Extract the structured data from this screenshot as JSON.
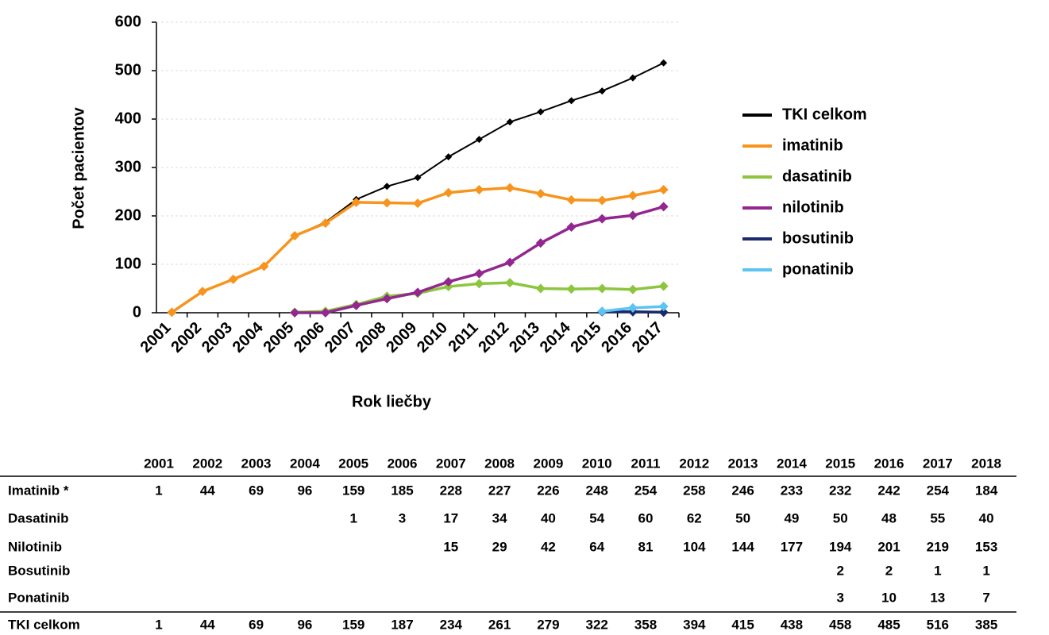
{
  "chart_data": {
    "type": "line",
    "xlabel": "Rok liečby",
    "ylabel": "Počet pacientov",
    "categories": [
      "2001",
      "2002",
      "2003",
      "2004",
      "2005",
      "2006",
      "2007",
      "2008",
      "2009",
      "2010",
      "2011",
      "2012",
      "2013",
      "2014",
      "2015",
      "2016",
      "2017"
    ],
    "ylim": [
      0,
      600
    ],
    "yticks": [
      0,
      100,
      200,
      300,
      400,
      500,
      600
    ],
    "grid": true,
    "legend": "right",
    "series": [
      {
        "name": "TKI celkom",
        "color": "#000000",
        "values": [
          1,
          44,
          69,
          96,
          159,
          187,
          234,
          261,
          279,
          322,
          358,
          394,
          415,
          438,
          458,
          485,
          516
        ]
      },
      {
        "name": "imatinib",
        "color": "#f7941d",
        "values": [
          1,
          44,
          69,
          96,
          159,
          185,
          228,
          227,
          226,
          248,
          254,
          258,
          246,
          233,
          232,
          242,
          254
        ]
      },
      {
        "name": "dasatinib",
        "color": "#8cc63f",
        "values": [
          null,
          null,
          null,
          null,
          1,
          3,
          17,
          34,
          40,
          54,
          60,
          62,
          50,
          49,
          50,
          48,
          55
        ]
      },
      {
        "name": "nilotinib",
        "color": "#92278f",
        "values": [
          null,
          null,
          null,
          null,
          0,
          0,
          15,
          29,
          42,
          64,
          81,
          104,
          144,
          177,
          194,
          201,
          219
        ]
      },
      {
        "name": "bosutinib",
        "color": "#1b2a6b",
        "values": [
          null,
          null,
          null,
          null,
          null,
          null,
          null,
          null,
          null,
          null,
          null,
          null,
          null,
          null,
          2,
          2,
          1
        ]
      },
      {
        "name": "ponatinib",
        "color": "#5bc4f1",
        "values": [
          null,
          null,
          null,
          null,
          null,
          null,
          null,
          null,
          null,
          null,
          null,
          null,
          null,
          null,
          3,
          10,
          13
        ]
      }
    ]
  },
  "table": {
    "columns": [
      "2001",
      "2002",
      "2003",
      "2004",
      "2005",
      "2006",
      "2007",
      "2008",
      "2009",
      "2010",
      "2011",
      "2012",
      "2013",
      "2014",
      "2015",
      "2016",
      "2017",
      "2018"
    ],
    "rows": [
      {
        "label": "Imatinib *",
        "values": [
          1,
          44,
          69,
          96,
          159,
          185,
          228,
          227,
          226,
          248,
          254,
          258,
          246,
          233,
          232,
          242,
          254,
          184
        ]
      },
      {
        "label": "Dasatinib",
        "values": [
          null,
          null,
          null,
          null,
          1,
          3,
          17,
          34,
          40,
          54,
          60,
          62,
          50,
          49,
          50,
          48,
          55,
          40
        ]
      },
      {
        "label": "Nilotinib",
        "values": [
          null,
          null,
          null,
          null,
          null,
          null,
          15,
          29,
          42,
          64,
          81,
          104,
          144,
          177,
          194,
          201,
          219,
          153
        ]
      },
      {
        "label": "Bosutinib",
        "values": [
          null,
          null,
          null,
          null,
          null,
          null,
          null,
          null,
          null,
          null,
          null,
          null,
          null,
          null,
          2,
          2,
          1,
          1
        ]
      },
      {
        "label": "Ponatinib",
        "values": [
          null,
          null,
          null,
          null,
          null,
          null,
          null,
          null,
          null,
          null,
          null,
          null,
          null,
          null,
          3,
          10,
          13,
          7
        ]
      },
      {
        "label": "TKI celkom",
        "values": [
          1,
          44,
          69,
          96,
          159,
          187,
          234,
          261,
          279,
          322,
          358,
          394,
          415,
          438,
          458,
          485,
          516,
          385
        ]
      }
    ]
  }
}
